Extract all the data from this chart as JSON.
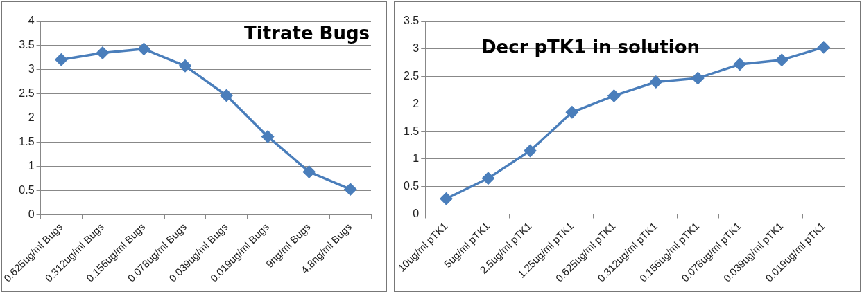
{
  "chart_data": [
    {
      "type": "line",
      "title": "Titrate Bugs",
      "categories": [
        "0.625ug/ml Bugs",
        "0.312ug/ml Bugs",
        "0.156ug/ml Bugs",
        "0.078ug/ml Bugs",
        "0.039ug/ml Bugs",
        "0.019ug/ml Bugs",
        "9ng/ml Bugs",
        "4.8ng/ml Bugs"
      ],
      "series": [
        {
          "color": "#4a7ebb",
          "values": [
            3.21,
            3.35,
            3.43,
            3.08,
            2.47,
            1.62,
            0.89,
            0.53
          ]
        }
      ],
      "ylim": [
        0,
        4
      ],
      "yticks": [
        0,
        0.5,
        1,
        1.5,
        2,
        2.5,
        3,
        3.5,
        4
      ],
      "grid": "y",
      "legend": false,
      "marker": "diamond",
      "line_style": "solid"
    },
    {
      "type": "line",
      "title": "Decr pTK1 in solution",
      "categories": [
        "10ug/ml pTK1",
        "5ug/ml pTK1",
        "2.5ug/ml pTK1",
        "1.25ug/ml pTK1",
        "0.625ug/ml pTK1",
        "0.312ug/ml pTK1",
        "0.156ug/ml pTK1",
        "0.078ug/ml pTK1",
        "0.039ug/ml pTK1",
        "0.019ug/ml pTK1"
      ],
      "series": [
        {
          "color": "#4a7ebb",
          "values": [
            0.28,
            0.65,
            1.15,
            1.85,
            2.15,
            2.4,
            2.47,
            2.72,
            2.8,
            3.03
          ]
        }
      ],
      "ylim": [
        0,
        3.5
      ],
      "yticks": [
        0,
        0.5,
        1,
        1.5,
        2,
        2.5,
        3,
        3.5
      ],
      "grid": "y",
      "legend": false,
      "marker": "diamond",
      "line_style": "solid"
    }
  ]
}
